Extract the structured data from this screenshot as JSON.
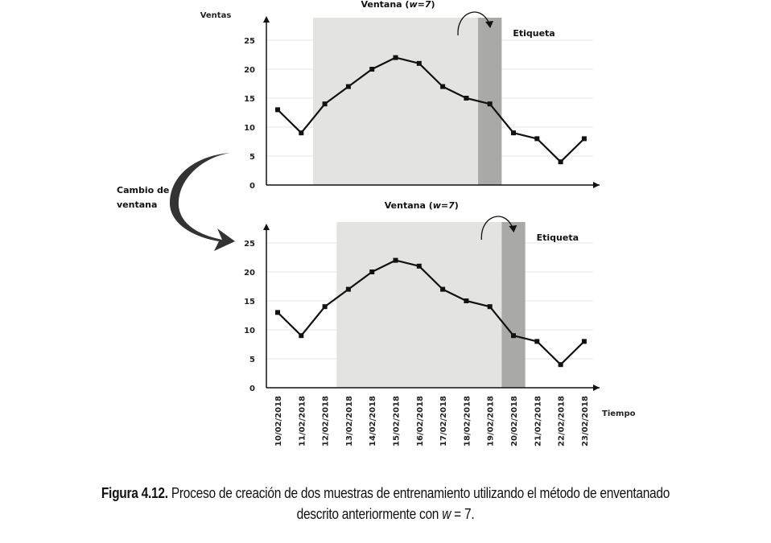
{
  "chart_data": [
    {
      "type": "line",
      "ylabel": "Ventas",
      "xlabel": "",
      "ylim": [
        0,
        25
      ],
      "yticks": [
        0,
        5,
        10,
        15,
        20,
        25
      ],
      "x": [
        "10/02/2018",
        "11/02/2018",
        "12/02/2018",
        "13/02/2018",
        "14/02/2018",
        "15/02/2018",
        "16/02/2018",
        "17/02/2018",
        "18/02/2018",
        "19/02/2018",
        "20/02/2018",
        "21/02/2018",
        "22/02/2018",
        "23/02/2018"
      ],
      "series": [
        {
          "values": [
            13,
            9,
            14,
            17,
            20,
            22,
            21,
            17,
            15,
            14,
            9,
            8,
            4,
            8
          ]
        }
      ],
      "window_label": "Ventana (w=7)",
      "window_range": [
        "11/02/2018",
        "18/02/2018"
      ],
      "label_text": "Etiqueta",
      "label_range": [
        "18/02/2018",
        "19/02/2018"
      ],
      "show_x_ticks": false
    },
    {
      "type": "line",
      "ylabel": "",
      "xlabel": "Tiempo",
      "ylim": [
        0,
        25
      ],
      "yticks": [
        0,
        5,
        10,
        15,
        20,
        25
      ],
      "x": [
        "10/02/2018",
        "11/02/2018",
        "12/02/2018",
        "13/02/2018",
        "14/02/2018",
        "15/02/2018",
        "16/02/2018",
        "17/02/2018",
        "18/02/2018",
        "19/02/2018",
        "20/02/2018",
        "21/02/2018",
        "22/02/2018",
        "23/02/2018"
      ],
      "series": [
        {
          "values": [
            13,
            9,
            14,
            17,
            20,
            22,
            21,
            17,
            15,
            14,
            9,
            8,
            4,
            8
          ]
        }
      ],
      "window_label": "Ventana (w=7)",
      "window_range": [
        "12/02/2018",
        "19/02/2018"
      ],
      "label_text": "Etiqueta",
      "label_range": [
        "19/02/2018",
        "20/02/2018"
      ],
      "show_x_ticks": true
    }
  ],
  "transition": {
    "text_line1": "Cambio de",
    "text_line2": "ventana"
  },
  "caption": {
    "label": "Figura 4.12.",
    "text_line1": " Proceso de creación de dos muestras de entrenamiento utilizando el método de enventanado",
    "text_line2_a": "descrito anteriormente con ",
    "text_line2_var": "w",
    "text_line2_b": " = 7."
  },
  "colors": {
    "window": "#e3e3e1",
    "label": "#a9a9a7",
    "line": "#111111",
    "grid": "#e6e6e6"
  }
}
